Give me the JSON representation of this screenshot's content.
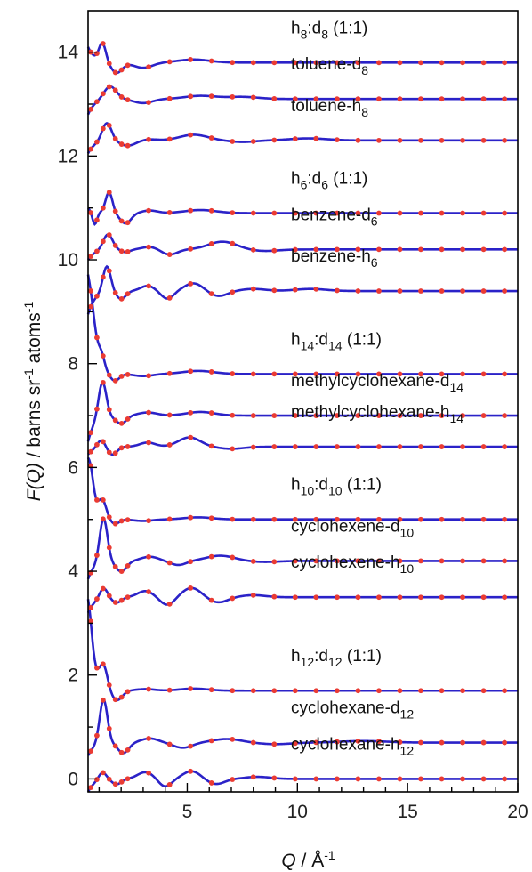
{
  "chart_data": {
    "type": "line",
    "xlabel": {
      "italic": "Q",
      "rest": " / Å",
      "sup": "-1"
    },
    "ylabel": {
      "italic": "F(Q)",
      "rest": " / barns sr",
      "sup1": "-1",
      "rest2": " atoms",
      "sup2": "-1"
    },
    "xlim": [
      0.5,
      20
    ],
    "ylim": [
      -0.25,
      14.8
    ],
    "xticks": [
      5,
      10,
      15,
      20
    ],
    "yticks": [
      0,
      2,
      4,
      6,
      8,
      10,
      12,
      14
    ],
    "grid": false,
    "colors": {
      "fit": "#2b22c8",
      "data": "#ea3b33",
      "axis": "#000000"
    },
    "series": [
      {
        "label": {
          "base": "h",
          "sub": "8",
          "mid": ":d",
          "sub2": "8",
          "tail": " (1:1)"
        },
        "offset": 13.8,
        "y_start": 14.1,
        "peaks": [
          [
            1.15,
            0.35,
            0.22
          ],
          [
            1.8,
            -0.2,
            0.35
          ],
          [
            3.0,
            -0.1,
            0.6
          ],
          [
            5.3,
            0.06,
            1.0
          ]
        ]
      },
      {
        "label": {
          "base": "toluene-d",
          "sub": "8"
        },
        "offset": 13.1,
        "y_start": 12.8,
        "peaks": [
          [
            1.5,
            0.25,
            0.4
          ],
          [
            3.0,
            -0.08,
            0.6
          ],
          [
            5.6,
            0.06,
            1.0
          ],
          [
            7.5,
            0.04,
            1.0
          ]
        ]
      },
      {
        "label": {
          "base": "toluene-h",
          "sub": "8"
        },
        "offset": 12.3,
        "y_start": 12.05,
        "peaks": [
          [
            1.35,
            0.35,
            0.3
          ],
          [
            2.3,
            -0.1,
            0.5
          ],
          [
            3.3,
            0.02,
            0.5
          ],
          [
            5.3,
            0.11,
            0.9
          ],
          [
            7.5,
            -0.03,
            0.8
          ],
          [
            10.5,
            0.04,
            1.2
          ]
        ]
      },
      {
        "label": {
          "base": "h",
          "sub": "6",
          "mid": ":d",
          "sub2": "6",
          "tail": " (1:1)"
        },
        "offset": 10.9,
        "y_start": 11.0,
        "peaks": [
          [
            0.8,
            -0.25,
            0.15
          ],
          [
            1.45,
            0.4,
            0.22
          ],
          [
            2.2,
            -0.2,
            0.35
          ],
          [
            3.3,
            0.05,
            0.5
          ],
          [
            5.6,
            0.06,
            1.0
          ]
        ]
      },
      {
        "label": {
          "base": "benzene-d",
          "sub": "6"
        },
        "offset": 10.2,
        "y_start": 10.0,
        "peaks": [
          [
            1.4,
            0.3,
            0.3
          ],
          [
            2.2,
            -0.05,
            0.3
          ],
          [
            3.3,
            0.05,
            0.5
          ],
          [
            4.2,
            -0.1,
            0.5
          ],
          [
            6.6,
            0.15,
            0.9
          ],
          [
            8.5,
            -0.03,
            0.9
          ]
        ]
      },
      {
        "label": {
          "base": "benzene-h",
          "sub": "6"
        },
        "offset": 9.4,
        "y_start": 8.95,
        "peaks": [
          [
            1.35,
            0.5,
            0.25
          ],
          [
            2.0,
            -0.15,
            0.3
          ],
          [
            3.2,
            0.1,
            0.45
          ],
          [
            4.1,
            -0.15,
            0.4
          ],
          [
            5.3,
            0.15,
            0.6
          ],
          [
            6.4,
            -0.1,
            0.6
          ],
          [
            8.0,
            0.04,
            0.8
          ],
          [
            10.6,
            0.04,
            1.0
          ]
        ]
      },
      {
        "label": {
          "base": "h",
          "sub": "14",
          "mid": ":d",
          "sub2": "14",
          "tail": " (1:1)"
        },
        "offset": 7.8,
        "y_start": 9.0,
        "peaks": [
          [
            0.6,
            0.8,
            0.3
          ],
          [
            1.1,
            0.25,
            0.2
          ],
          [
            1.7,
            -0.15,
            0.3
          ],
          [
            3.0,
            -0.04,
            0.6
          ],
          [
            5.5,
            0.06,
            1.0
          ]
        ]
      },
      {
        "label": {
          "base": "methylcyclohexane-d",
          "sub": "14"
        },
        "offset": 7.0,
        "y_start": 6.5,
        "peaks": [
          [
            1.15,
            0.7,
            0.25
          ],
          [
            2.0,
            -0.15,
            0.35
          ],
          [
            3.2,
            0.06,
            0.6
          ],
          [
            5.6,
            0.07,
            0.9
          ]
        ]
      },
      {
        "label": {
          "base": "methylcyclohexane-h",
          "sub": "14"
        },
        "offset": 6.4,
        "y_start": 6.25,
        "peaks": [
          [
            1.1,
            0.15,
            0.25
          ],
          [
            1.6,
            -0.15,
            0.3
          ],
          [
            3.2,
            0.08,
            0.5
          ],
          [
            5.1,
            0.18,
            0.7
          ],
          [
            7.0,
            -0.04,
            0.8
          ]
        ]
      },
      {
        "label": {
          "base": "h",
          "sub": "10",
          "mid": ":d",
          "sub2": "10",
          "tail": " (1:1)"
        },
        "offset": 5.0,
        "y_start": 5.8,
        "peaks": [
          [
            0.6,
            0.5,
            0.2
          ],
          [
            1.15,
            0.3,
            0.25
          ],
          [
            1.7,
            -0.1,
            0.3
          ],
          [
            3.0,
            -0.03,
            0.6
          ],
          [
            5.5,
            0.04,
            0.9
          ]
        ]
      },
      {
        "label": {
          "base": "cyclohexene-d",
          "sub": "10"
        },
        "offset": 4.2,
        "y_start": 3.85,
        "peaks": [
          [
            1.2,
            0.85,
            0.25
          ],
          [
            2.0,
            -0.2,
            0.35
          ],
          [
            3.3,
            0.08,
            0.55
          ],
          [
            4.6,
            -0.08,
            0.5
          ],
          [
            6.5,
            0.1,
            0.9
          ],
          [
            8.5,
            -0.02,
            0.9
          ]
        ]
      },
      {
        "label": {
          "base": "cyclohexene-h",
          "sub": "10"
        },
        "offset": 3.5,
        "y_start": 3.2,
        "peaks": [
          [
            1.2,
            0.2,
            0.25
          ],
          [
            1.8,
            -0.1,
            0.3
          ],
          [
            3.1,
            0.12,
            0.5
          ],
          [
            4.1,
            -0.15,
            0.45
          ],
          [
            5.2,
            0.18,
            0.6
          ],
          [
            6.4,
            -0.1,
            0.6
          ],
          [
            8.0,
            0.04,
            0.8
          ]
        ]
      },
      {
        "label": {
          "base": "h",
          "sub": "12",
          "mid": ":d",
          "sub2": "12",
          "tail": " (1:1)"
        },
        "offset": 1.7,
        "y_start": 2.9,
        "peaks": [
          [
            0.55,
            0.6,
            0.2
          ],
          [
            1.2,
            0.4,
            0.25
          ],
          [
            1.8,
            -0.2,
            0.35
          ],
          [
            3.1,
            0.03,
            0.6
          ],
          [
            5.3,
            0.04,
            0.9
          ]
        ]
      },
      {
        "label": {
          "base": "cyclohexane-d",
          "sub": "12"
        },
        "offset": 0.7,
        "y_start": 0.45,
        "peaks": [
          [
            1.2,
            0.85,
            0.25
          ],
          [
            2.1,
            -0.2,
            0.35
          ],
          [
            3.3,
            0.08,
            0.55
          ],
          [
            4.8,
            -0.1,
            0.6
          ],
          [
            6.8,
            0.07,
            0.9
          ],
          [
            9.0,
            -0.03,
            1.0
          ],
          [
            13.0,
            0.03,
            1.5
          ]
        ]
      },
      {
        "label": {
          "base": "cyclohexane-h",
          "sub": "12"
        },
        "offset": 0.0,
        "y_start": -0.25,
        "peaks": [
          [
            1.15,
            0.15,
            0.25
          ],
          [
            1.8,
            -0.1,
            0.3
          ],
          [
            3.1,
            0.13,
            0.5
          ],
          [
            4.0,
            -0.15,
            0.4
          ],
          [
            5.2,
            0.15,
            0.55
          ],
          [
            6.3,
            -0.1,
            0.55
          ],
          [
            8.2,
            0.04,
            0.8
          ]
        ]
      }
    ]
  }
}
